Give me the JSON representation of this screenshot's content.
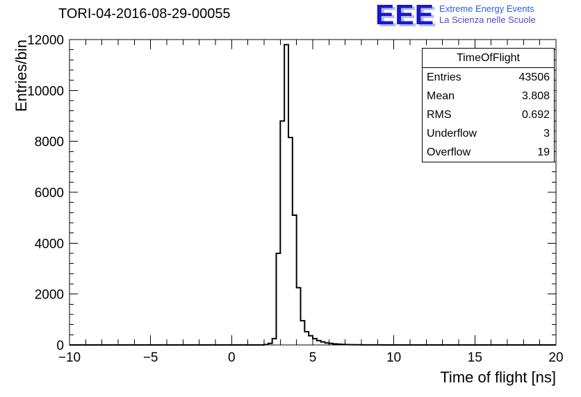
{
  "title": "TORI-04-2016-08-29-00055",
  "logo": {
    "text": "EEE",
    "line1": "Extreme Energy Events",
    "line2": "La Scienza nelle Scuole",
    "color": "#1717cf",
    "shadow_color": "#b2bef2",
    "line1_color": "#2b5ce2",
    "line2_color": "#4a4ad8"
  },
  "stats": {
    "title": "TimeOfFlight",
    "rows": [
      {
        "label": "Entries",
        "value": "43506"
      },
      {
        "label": "Mean",
        "value": "3.808"
      },
      {
        "label": "RMS",
        "value": "0.692"
      },
      {
        "label": "Underflow",
        "value": "3"
      },
      {
        "label": "Overflow",
        "value": "19"
      }
    ]
  },
  "chart_data": {
    "type": "bar",
    "subtype": "histogram-step",
    "title": "TORI-04-2016-08-29-00055",
    "xlabel": "Time of flight [ns]",
    "ylabel": "Entries/bin",
    "xlim": [
      -10,
      20
    ],
    "ylim": [
      0,
      12000
    ],
    "grid": false,
    "line_color": "#000000",
    "x_major_ticks": [
      -10,
      -5,
      0,
      5,
      10,
      15,
      20
    ],
    "x_tick_labels": [
      "−10",
      "−5",
      "0",
      "5",
      "10",
      "15",
      "20"
    ],
    "x_minor_step": 1,
    "y_major_ticks": [
      0,
      2000,
      4000,
      6000,
      8000,
      10000,
      12000
    ],
    "y_tick_labels": [
      "0",
      "2000",
      "4000",
      "6000",
      "8000",
      "10000",
      "12000"
    ],
    "y_minor_step": 400,
    "bin_start": 2.0,
    "bin_width": 0.25,
    "bin_counts": [
      15,
      60,
      250,
      3600,
      8800,
      11800,
      8150,
      5100,
      2250,
      950,
      520,
      360,
      250,
      170,
      120,
      80,
      60,
      40,
      30,
      20,
      15,
      10,
      8,
      6,
      5,
      4,
      3,
      2,
      2,
      1
    ],
    "stats_summary": {
      "entries": 43506,
      "mean": 3.808,
      "rms": 0.692,
      "underflow": 3,
      "overflow": 19
    }
  }
}
